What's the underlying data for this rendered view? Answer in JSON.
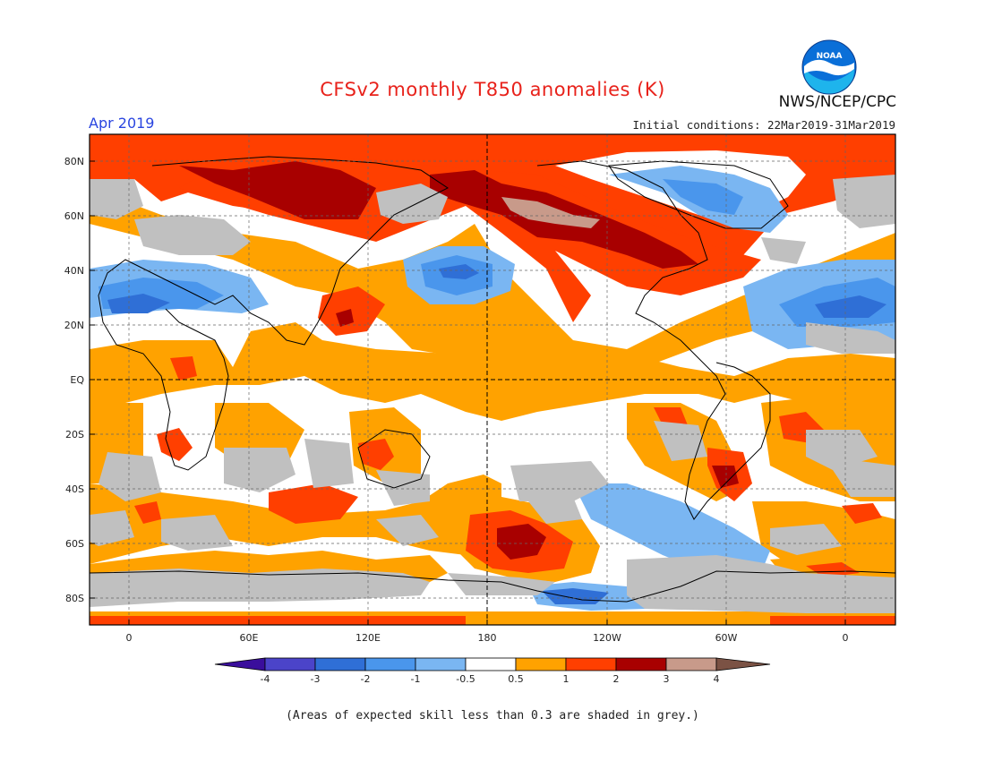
{
  "header": {
    "title": "CFSv2 monthly T850 anomalies (K)",
    "month": "Apr 2019",
    "initial_conditions": "Initial conditions: 22Mar2019-31Mar2019",
    "agency": "NWS/NCEP/CPC",
    "logo_text": "NOAA"
  },
  "map": {
    "lat_labels": [
      "80N",
      "60N",
      "40N",
      "20N",
      "EQ",
      "20S",
      "40S",
      "60S",
      "80S"
    ],
    "lon_labels": [
      "0",
      "60E",
      "120E",
      "180",
      "120W",
      "60W",
      "0"
    ]
  },
  "colorbar": {
    "ticks": [
      "-4",
      "-3",
      "-2",
      "-1",
      "-0.5",
      "0.5",
      "1",
      "2",
      "3",
      "4"
    ],
    "colors": {
      "lt_-4": "#3a0e9c",
      "-4_-3": "#4b44c9",
      "-3_-2": "#2f6fd6",
      "-2_-1": "#4a96ec",
      "-1_-0.5": "#7ab6f2",
      "-0.5_0.5": "#ffffff",
      "0.5_1": "#ffa200",
      "1_2": "#ff3f00",
      "2_3": "#a80000",
      "3_4": "#c89a8a",
      "gt_4": "#7b5244"
    },
    "skill_grey": "#c0c0c0"
  },
  "footnote": "(Areas of expected skill less than 0.3 are shaded in grey.)"
}
